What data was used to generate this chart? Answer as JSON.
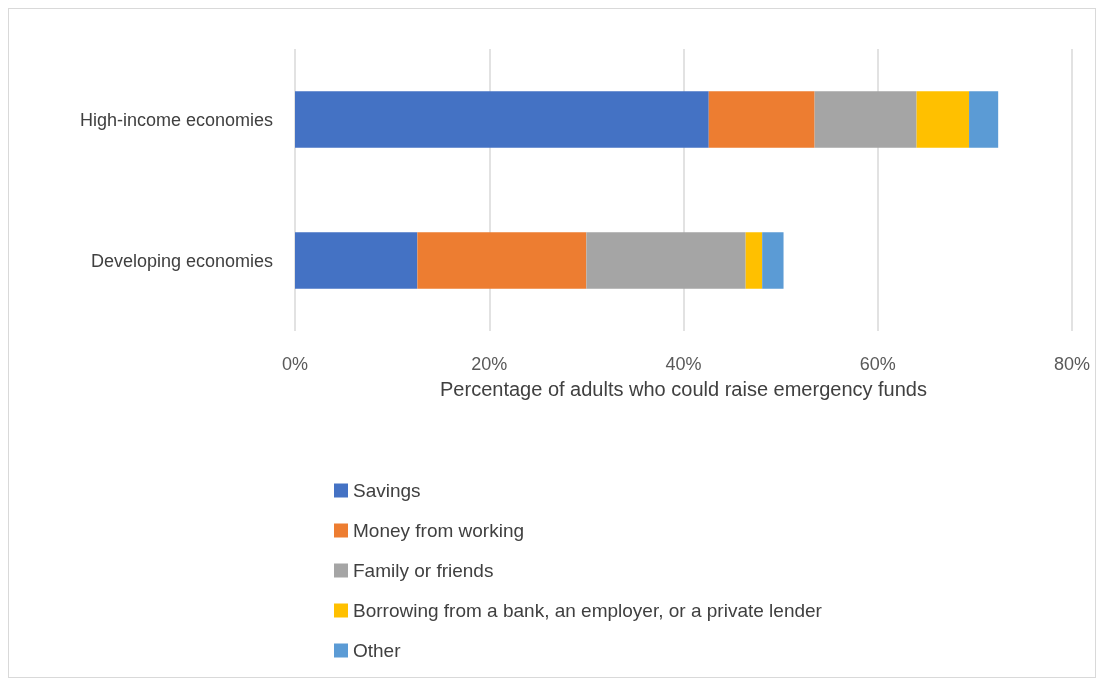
{
  "chart_data": {
    "type": "bar",
    "orientation": "horizontal",
    "stacked": true,
    "xlabel": "Percentage of adults who could raise emergency funds",
    "categories": [
      "High-income economies",
      "Developing economies"
    ],
    "series": [
      {
        "name": "Savings",
        "color": "#4472c4",
        "values": [
          42.6,
          12.6
        ]
      },
      {
        "name": "Money from working",
        "color": "#ed7d31",
        "values": [
          10.9,
          17.4
        ]
      },
      {
        "name": "Family or friends",
        "color": "#a5a5a5",
        "values": [
          10.5,
          16.4
        ]
      },
      {
        "name": "Borrowing from a bank, an employer, or a private lender",
        "color": "#ffc000",
        "values": [
          5.4,
          1.7
        ]
      },
      {
        "name": "Other",
        "color": "#5b9bd5",
        "values": [
          3.0,
          2.2
        ]
      }
    ],
    "xlim": [
      0,
      80
    ],
    "xticks": [
      {
        "value": 0,
        "label": "0%"
      },
      {
        "value": 20,
        "label": "20%"
      },
      {
        "value": 40,
        "label": "40%"
      },
      {
        "value": 60,
        "label": "60%"
      },
      {
        "value": 80,
        "label": "80%"
      }
    ],
    "grid": "x",
    "legend": "bottom"
  }
}
